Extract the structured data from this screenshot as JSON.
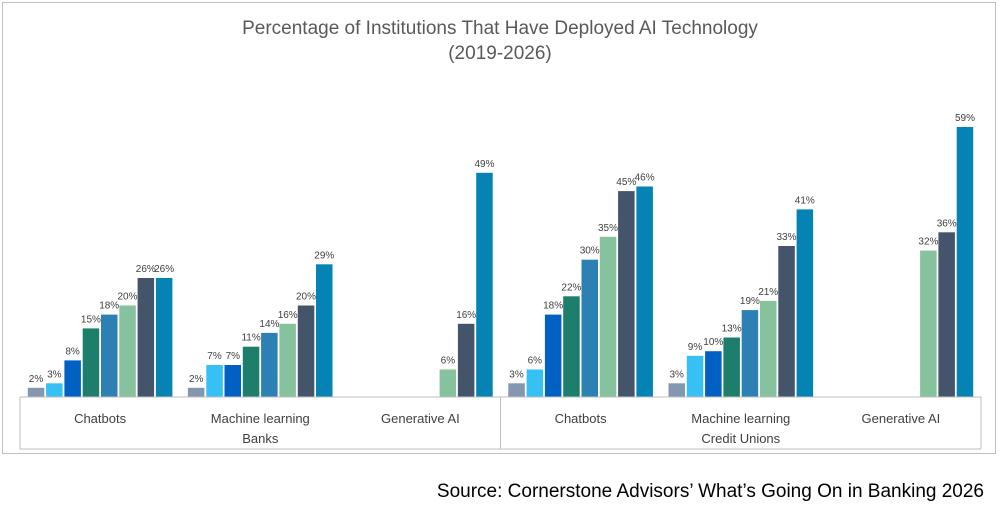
{
  "chart_data": {
    "type": "bar",
    "title": "Percentage of Institutions That Have Deployed AI Technology",
    "subtitle": "(2019-2026)",
    "groups": [
      "Banks",
      "Credit Unions"
    ],
    "categories": [
      "Chatbots",
      "Machine learning",
      "Generative AI"
    ],
    "grid": false,
    "legend": "none",
    "ylim": [
      0,
      60
    ],
    "colors": [
      "#8497b0",
      "#37c0f4",
      "#0061c3",
      "#1c7e6b",
      "#2c80b4",
      "#86c29d",
      "#44546a",
      "#0583b5"
    ],
    "bars": [
      {
        "group": "Banks",
        "category": "Chatbots",
        "values": [
          2,
          3,
          8,
          15,
          18,
          20,
          26,
          26
        ],
        "labels": [
          "2%",
          "3%",
          "8%",
          "15%",
          "18%",
          "20%",
          "26%",
          "26%"
        ]
      },
      {
        "group": "Banks",
        "category": "Machine learning",
        "values": [
          2,
          7,
          7,
          11,
          14,
          16,
          20,
          29
        ],
        "labels": [
          "2%",
          "7%",
          "7%",
          "11%",
          "14%",
          "16%",
          "20%",
          "29%"
        ]
      },
      {
        "group": "Banks",
        "category": "Generative AI",
        "values": [
          null,
          null,
          null,
          null,
          null,
          6,
          16,
          49
        ],
        "labels": [
          "",
          "",
          "",
          "",
          "",
          "6%",
          "16%",
          "49%"
        ]
      },
      {
        "group": "Credit Unions",
        "category": "Chatbots",
        "values": [
          3,
          6,
          18,
          22,
          30,
          35,
          45,
          46
        ],
        "labels": [
          "3%",
          "6%",
          "18%",
          "22%",
          "30%",
          "35%",
          "45%",
          "46%"
        ]
      },
      {
        "group": "Credit Unions",
        "category": "Machine learning",
        "values": [
          3,
          9,
          10,
          13,
          19,
          21,
          33,
          41
        ],
        "labels": [
          "3%",
          "9%",
          "10%",
          "13%",
          "19%",
          "21%",
          "33%",
          "41%"
        ]
      },
      {
        "group": "Credit Unions",
        "category": "Generative AI",
        "values": [
          null,
          null,
          null,
          null,
          null,
          32,
          36,
          59
        ],
        "labels": [
          "",
          "",
          "",
          "",
          "",
          "32%",
          "36%",
          "59%"
        ]
      }
    ]
  },
  "source": "Source: Cornerstone Advisors’ What’s Going On in Banking 2026"
}
